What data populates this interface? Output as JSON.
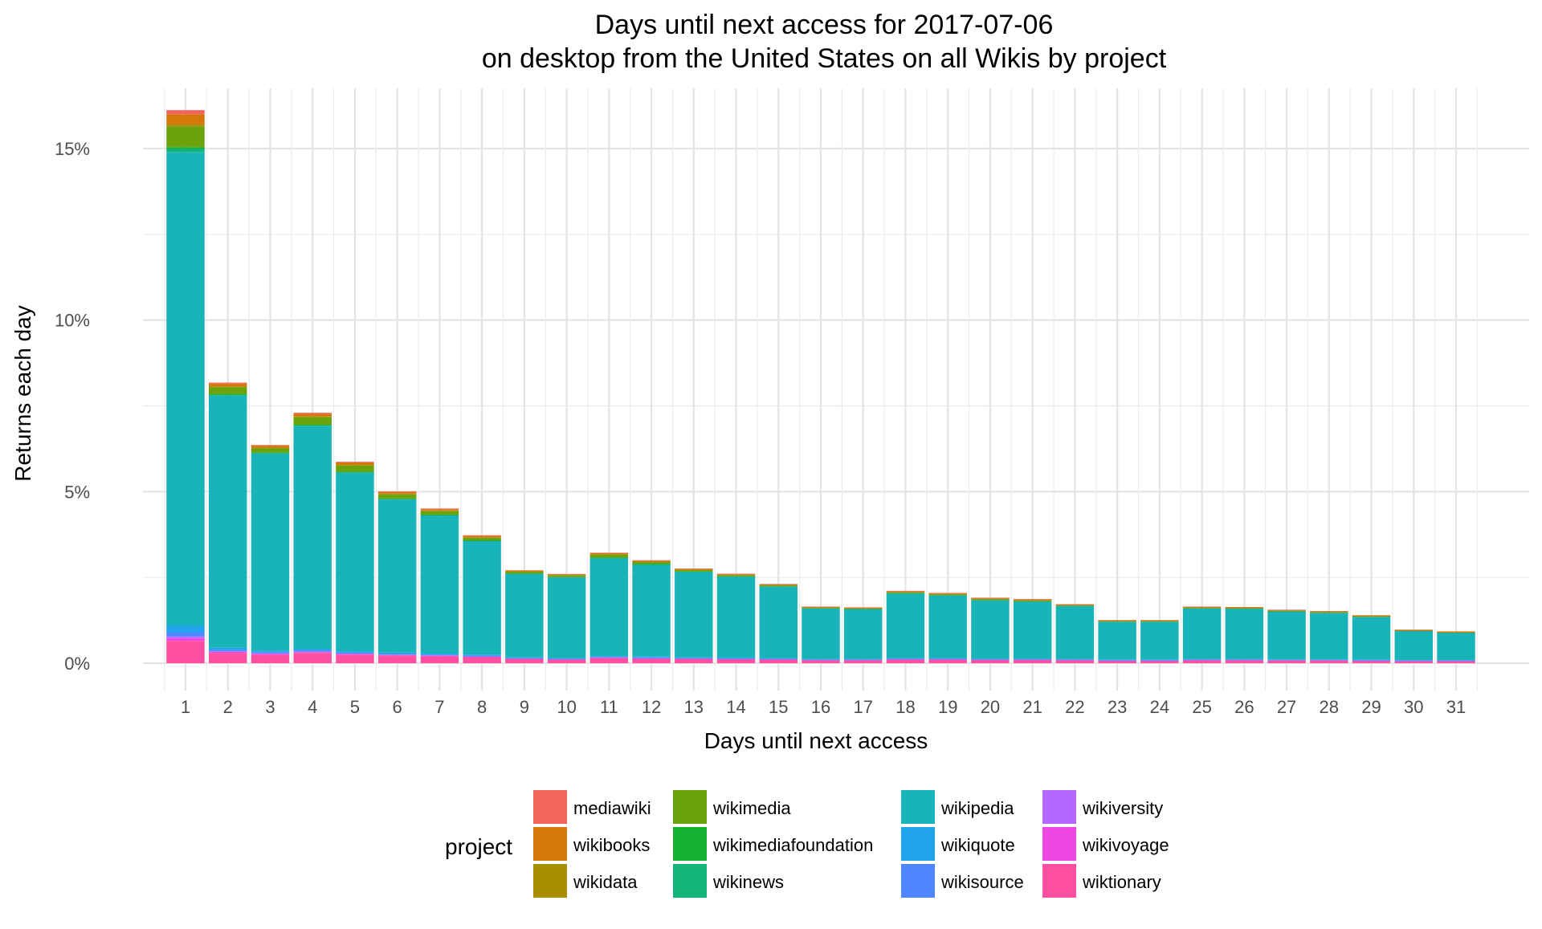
{
  "chart_data": {
    "type": "bar",
    "stacked": true,
    "title": "Days until next access for 2017-07-06",
    "subtitle": "on desktop from the United States on all Wikis by project",
    "xlabel": "Days until next access",
    "ylabel": "Returns each day",
    "ylim": [
      -0.008,
      0.165
    ],
    "yticks": [
      0,
      0.05,
      0.1,
      0.15
    ],
    "ytick_labels": [
      "0%",
      "5%",
      "10%",
      "15%"
    ],
    "grid": true,
    "legend": {
      "title": "project",
      "position": "bottom"
    },
    "categories": [
      "1",
      "2",
      "3",
      "4",
      "5",
      "6",
      "7",
      "8",
      "9",
      "10",
      "11",
      "12",
      "13",
      "14",
      "15",
      "16",
      "17",
      "18",
      "19",
      "20",
      "21",
      "22",
      "23",
      "24",
      "25",
      "26",
      "27",
      "28",
      "29",
      "30",
      "31"
    ],
    "series": [
      {
        "name": "wiktionary",
        "color": "#FF4FA0",
        "values": [
          0.0065,
          0.003,
          0.0025,
          0.003,
          0.0025,
          0.0022,
          0.002,
          0.0018,
          0.0012,
          0.001,
          0.0015,
          0.0013,
          0.0012,
          0.0011,
          0.001,
          0.0008,
          0.0008,
          0.001,
          0.001,
          0.0009,
          0.0009,
          0.0008,
          0.0006,
          0.0006,
          0.0008,
          0.0008,
          0.0007,
          0.0007,
          0.0006,
          0.0005,
          0.0005
        ]
      },
      {
        "name": "wikivoyage",
        "color": "#EE46E0",
        "values": [
          0.0008,
          0.0003,
          0.0002,
          0.0002,
          0.0002,
          0.0002,
          0.0002,
          0.0001,
          0.0001,
          0.0001,
          0.0001,
          0.0001,
          0.0001,
          0.0001,
          0.0001,
          0.0001,
          0.0001,
          0.0001,
          0.0001,
          0.0001,
          0.0001,
          0.0001,
          0.0001,
          0.0001,
          0.0001,
          0.0001,
          0.0001,
          0.0001,
          0.0001,
          0.0001,
          0.0001
        ]
      },
      {
        "name": "wikiversity",
        "color": "#B468FF",
        "values": [
          0.0005,
          0.0002,
          0.0002,
          0.0002,
          0.0001,
          0.0001,
          0.0001,
          0.0001,
          0.0001,
          0.0001,
          0.0001,
          0.0001,
          0.0001,
          0.0001,
          0.0001,
          0.0001,
          0.0001,
          0.0001,
          0.0001,
          0.0001,
          0.0001,
          0.0001,
          0.0001,
          0.0001,
          0.0001,
          0.0001,
          0.0001,
          0.0001,
          0.0001,
          0.0001,
          0.0001
        ]
      },
      {
        "name": "wikisource",
        "color": "#4D86FF",
        "values": [
          0.0012,
          0.0004,
          0.0003,
          0.0003,
          0.0003,
          0.0002,
          0.0002,
          0.0002,
          0.0001,
          0.0001,
          0.0002,
          0.0002,
          0.0001,
          0.0001,
          0.0001,
          0.0001,
          0.0001,
          0.0001,
          0.0001,
          0.0001,
          0.0001,
          0.0001,
          0.0001,
          0.0001,
          0.0001,
          0.0001,
          0.0001,
          0.0001,
          0.0001,
          0.0001,
          0.0001
        ]
      },
      {
        "name": "wikiquote",
        "color": "#20A4EE",
        "values": [
          0.002,
          0.0006,
          0.0004,
          0.0005,
          0.0004,
          0.0004,
          0.0003,
          0.0003,
          0.0002,
          0.0002,
          0.0002,
          0.0002,
          0.0002,
          0.0002,
          0.0002,
          0.0001,
          0.0001,
          0.0002,
          0.0002,
          0.0001,
          0.0001,
          0.0001,
          0.0001,
          0.0001,
          0.0001,
          0.0001,
          0.0001,
          0.0001,
          0.0001,
          0.0001,
          0.0001
        ]
      },
      {
        "name": "wikipedia",
        "color": "#19B4B9",
        "values": [
          0.138,
          0.0735,
          0.0575,
          0.065,
          0.052,
          0.0446,
          0.0403,
          0.0331,
          0.0243,
          0.0235,
          0.0285,
          0.0268,
          0.0249,
          0.0236,
          0.0208,
          0.0147,
          0.0145,
          0.0188,
          0.0182,
          0.017,
          0.0166,
          0.0154,
          0.011,
          0.011,
          0.0147,
          0.0146,
          0.0139,
          0.0135,
          0.0124,
          0.0084,
          0.0079
        ]
      },
      {
        "name": "wikinews",
        "color": "#13B477",
        "values": [
          0.001,
          0.0003,
          0.0002,
          0.0002,
          0.0002,
          0.0002,
          0.0001,
          0.0001,
          0.0001,
          0.0001,
          0.0001,
          0.0001,
          0.0001,
          0.0001,
          0.0001,
          0.0001,
          0.0001,
          0.0001,
          0.0001,
          0.0001,
          0.0001,
          0.0001,
          0.0001,
          0.0001,
          0.0001,
          0.0001,
          0.0001,
          0.0001,
          0.0001,
          0.0001,
          0.0001
        ]
      },
      {
        "name": "wikimediafoundation",
        "color": "#16B033",
        "values": [
          0.0004,
          0.0001,
          0.0001,
          0.0001,
          0.0001,
          0.0001,
          0.0001,
          0.0001,
          0.0,
          0.0,
          0.0001,
          0.0001,
          0.0,
          0.0,
          0.0,
          0.0,
          0.0,
          0.0,
          0.0,
          0.0,
          0.0,
          0.0,
          0.0,
          0.0,
          0.0,
          0.0,
          0.0,
          0.0,
          0.0,
          0.0,
          0.0
        ]
      },
      {
        "name": "wikimedia",
        "color": "#6BA30D",
        "values": [
          0.006,
          0.002,
          0.0012,
          0.0022,
          0.0018,
          0.0012,
          0.001,
          0.0008,
          0.0006,
          0.0005,
          0.0008,
          0.0006,
          0.0005,
          0.0004,
          0.0003,
          0.0002,
          0.0002,
          0.0003,
          0.0003,
          0.0003,
          0.0003,
          0.0002,
          0.0002,
          0.0002,
          0.0002,
          0.0002,
          0.0002,
          0.0002,
          0.0002,
          0.0001,
          0.0001
        ]
      },
      {
        "name": "wikidata",
        "color": "#A68F00",
        "values": [
          0.0006,
          0.0003,
          0.0002,
          0.0002,
          0.0002,
          0.0002,
          0.0002,
          0.0001,
          0.0001,
          0.0001,
          0.0002,
          0.0001,
          0.0001,
          0.0001,
          0.0001,
          0.0001,
          0.0001,
          0.0001,
          0.0001,
          0.0001,
          0.0001,
          0.0001,
          0.0001,
          0.0001,
          0.0001,
          0.0001,
          0.0001,
          0.0001,
          0.0001,
          0.0001,
          0.0001
        ]
      },
      {
        "name": "wikibooks",
        "color": "#D5780B",
        "values": [
          0.003,
          0.0008,
          0.0006,
          0.0008,
          0.0007,
          0.0005,
          0.0004,
          0.0004,
          0.0002,
          0.0002,
          0.0003,
          0.0003,
          0.0002,
          0.0002,
          0.0002,
          0.0001,
          0.0001,
          0.0002,
          0.0002,
          0.0002,
          0.0002,
          0.0001,
          0.0001,
          0.0001,
          0.0001,
          0.0001,
          0.0001,
          0.0001,
          0.0001,
          0.0001,
          0.0001
        ]
      },
      {
        "name": "mediawiki",
        "color": "#F2665E",
        "values": [
          0.0012,
          0.0003,
          0.0002,
          0.0003,
          0.0002,
          0.0002,
          0.0002,
          0.0002,
          0.0001,
          0.0001,
          0.0001,
          0.0001,
          0.0001,
          0.0001,
          0.0001,
          0.0001,
          0.0001,
          0.0001,
          0.0001,
          0.0001,
          0.0001,
          0.0001,
          0.0001,
          0.0001,
          0.0001,
          0.0001,
          0.0001,
          0.0001,
          0.0001,
          0.0001,
          0.0001
        ]
      }
    ],
    "legend_order": [
      "mediawiki",
      "wikibooks",
      "wikidata",
      "wikimedia",
      "wikimediafoundation",
      "wikinews",
      "wikipedia",
      "wikiquote",
      "wikisource",
      "wikiversity",
      "wikivoyage",
      "wiktionary"
    ]
  }
}
